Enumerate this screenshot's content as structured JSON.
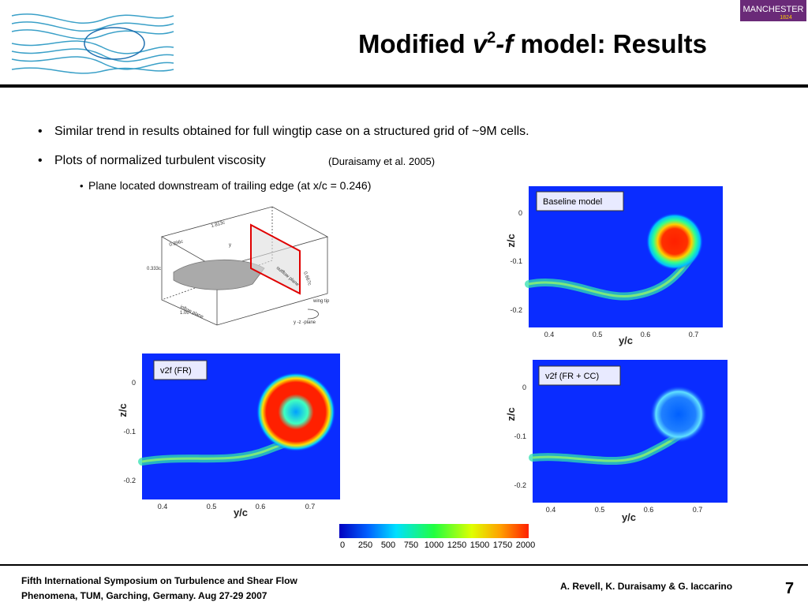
{
  "header": {
    "title": [
      "Modified ",
      "v",
      "2",
      "-f",
      " model: Results"
    ],
    "logo": [
      "MANCHESTER",
      "1824"
    ]
  },
  "bullets": [
    "Similar trend in results obtained for full wingtip case on a structured grid of ~9M cells.",
    "Plots of normalized turbulent viscosity"
  ],
  "citation": "(Duraisamy et al. 2005)",
  "sub_bullet": "Plane located downstream of trailing edge (at x/c = 0.246)",
  "diagram": {
    "labels": [
      "1.813c",
      "0.396c",
      "0.333c",
      "0.667c",
      "outflow plane",
      "inflow plane",
      "1.0c",
      "wing tip",
      "y -z -plane",
      "y"
    ]
  },
  "plots": [
    {
      "legend": "Baseline model",
      "xlabel": "y/c",
      "ylabel": "z/c",
      "xticks": [
        "0.4",
        "0.5",
        "0.6",
        "0.7"
      ],
      "yticks": [
        "0",
        "-0.1",
        "-0.2"
      ]
    },
    {
      "legend": "v2f (FR)",
      "xlabel": "y/c",
      "ylabel": "z/c",
      "xticks": [
        "0.4",
        "0.5",
        "0.6",
        "0.7"
      ],
      "yticks": [
        "0",
        "-0.1",
        "-0.2"
      ]
    },
    {
      "legend": "v2f (FR + CC)",
      "xlabel": "y/c",
      "ylabel": "z/c",
      "xticks": [
        "0.4",
        "0.5",
        "0.6",
        "0.7"
      ],
      "yticks": [
        "0",
        "-0.1",
        "-0.2"
      ]
    }
  ],
  "colorbar": {
    "ticks": [
      "0",
      "250",
      "500",
      "750",
      "1000",
      "1250",
      "1500",
      "1750",
      "2000"
    ]
  },
  "footer": {
    "conference": [
      "Fifth International Symposium on Turbulence and Shear Flow",
      "Phenomena, TUM, Garching, Germany. Aug 27-29 2007"
    ],
    "authors": "A. Revell, K. Duraisamy & G. Iaccarino",
    "page": "7"
  }
}
